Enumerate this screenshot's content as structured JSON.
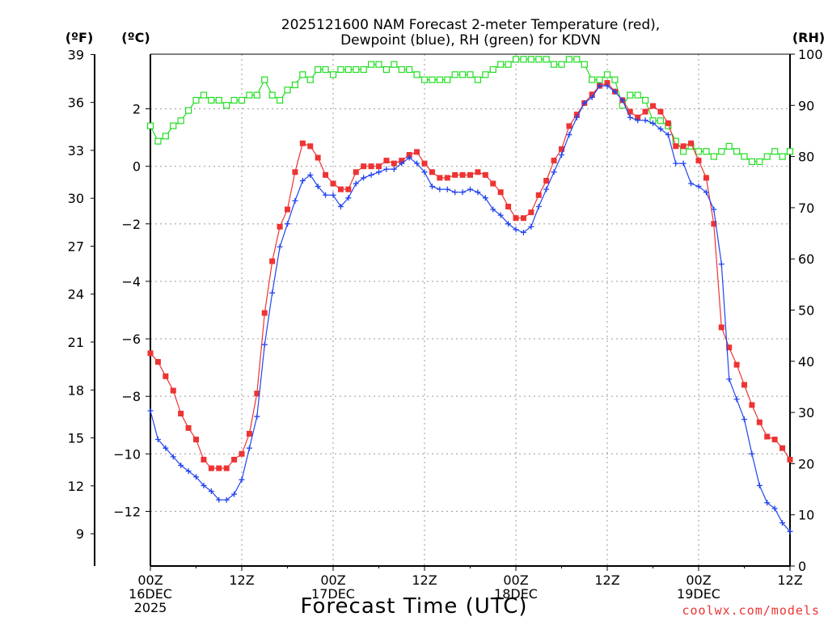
{
  "chart_data": {
    "type": "line",
    "title": "2025121600 NAM Forecast 2-meter Temperature (red),",
    "title_line2": "Dewpoint (blue), RH (green) for KDVN",
    "left_axis_unit_f": "(ºF)",
    "left_axis_unit_c": "(ºC)",
    "right_axis_unit": "(RH)",
    "xlabel": "Forecast Time (UTC)",
    "credit": "coolwx.com/models",
    "x_range_hours": [
      0,
      84
    ],
    "x_ticks": [
      {
        "hour": 0,
        "lines": [
          "00Z",
          "16DEC",
          "2025"
        ]
      },
      {
        "hour": 12,
        "lines": [
          "12Z"
        ]
      },
      {
        "hour": 24,
        "lines": [
          "00Z",
          "17DEC"
        ]
      },
      {
        "hour": 36,
        "lines": [
          "12Z"
        ]
      },
      {
        "hour": 48,
        "lines": [
          "00Z",
          "18DEC"
        ]
      },
      {
        "hour": 60,
        "lines": [
          "12Z"
        ]
      },
      {
        "hour": 72,
        "lines": [
          "00Z",
          "19DEC"
        ]
      },
      {
        "hour": 84,
        "lines": [
          "12Z"
        ]
      }
    ],
    "celsius_range": [
      -13.9,
      3.9
    ],
    "celsius_ticks": [
      "2",
      "0",
      "-2",
      "-4",
      "-6",
      "-8",
      "-10",
      "-12"
    ],
    "fahrenheit_ticks": [
      "39",
      "36",
      "33",
      "30",
      "27",
      "24",
      "21",
      "18",
      "15",
      "12",
      "9"
    ],
    "rh_range": [
      0,
      100
    ],
    "rh_ticks": [
      "0",
      "10",
      "20",
      "30",
      "40",
      "50",
      "60",
      "70",
      "80",
      "90",
      "100"
    ],
    "colors": {
      "temperature": "#ee3333",
      "dewpoint": "#2244ee",
      "rh": "#22dd22",
      "credit": "#ee3333"
    },
    "series": [
      {
        "name": "Temperature (°C)",
        "x": [
          0,
          1,
          2,
          3,
          4,
          5,
          6,
          7,
          8,
          9,
          10,
          11,
          12,
          13,
          14,
          15,
          16,
          17,
          18,
          19,
          20,
          21,
          22,
          23,
          24,
          25,
          26,
          27,
          28,
          29,
          30,
          31,
          32,
          33,
          34,
          35,
          36,
          37,
          38,
          39,
          40,
          41,
          42,
          43,
          44,
          45,
          46,
          47,
          48,
          49,
          50,
          51,
          52,
          53,
          54,
          55,
          56,
          57,
          58,
          59,
          60,
          61,
          62,
          63,
          64,
          65,
          66,
          67,
          68,
          69,
          70,
          71,
          72,
          73,
          74,
          75,
          76,
          77,
          78,
          79,
          80,
          81,
          82,
          83,
          84
        ],
        "values": [
          -6.5,
          -6.8,
          -7.3,
          -7.8,
          -8.6,
          -9.1,
          -9.5,
          -10.2,
          -10.5,
          -10.5,
          -10.5,
          -10.2,
          -10.0,
          -9.3,
          -7.9,
          -5.1,
          -3.3,
          -2.1,
          -1.5,
          -0.2,
          0.8,
          0.7,
          0.3,
          -0.3,
          -0.6,
          -0.8,
          -0.8,
          -0.2,
          0.0,
          0.0,
          0.0,
          0.2,
          0.1,
          0.2,
          0.4,
          0.5,
          0.1,
          -0.2,
          -0.4,
          -0.4,
          -0.3,
          -0.3,
          -0.3,
          -0.2,
          -0.3,
          -0.6,
          -0.9,
          -1.4,
          -1.8,
          -1.8,
          -1.6,
          -1.0,
          -0.5,
          0.2,
          0.6,
          1.4,
          1.8,
          2.2,
          2.5,
          2.8,
          2.9,
          2.6,
          2.3,
          1.9,
          1.7,
          1.9,
          2.1,
          1.9,
          1.5,
          0.7,
          0.7,
          0.8,
          0.2,
          -0.4,
          -2.0,
          -5.6,
          -6.3,
          -6.9,
          -7.6,
          -8.3,
          -8.9,
          -9.4,
          -9.5,
          -9.8,
          -10.2
        ]
      },
      {
        "name": "Dewpoint (°C)",
        "x": [
          0,
          1,
          2,
          3,
          4,
          5,
          6,
          7,
          8,
          9,
          10,
          11,
          12,
          13,
          14,
          15,
          16,
          17,
          18,
          19,
          20,
          21,
          22,
          23,
          24,
          25,
          26,
          27,
          28,
          29,
          30,
          31,
          32,
          33,
          34,
          35,
          36,
          37,
          38,
          39,
          40,
          41,
          42,
          43,
          44,
          45,
          46,
          47,
          48,
          49,
          50,
          51,
          52,
          53,
          54,
          55,
          56,
          57,
          58,
          59,
          60,
          61,
          62,
          63,
          64,
          65,
          66,
          67,
          68,
          69,
          70,
          71,
          72,
          73,
          74,
          75,
          76,
          77,
          78,
          79,
          80,
          81,
          82,
          83,
          84
        ],
        "values": [
          -8.5,
          -9.5,
          -9.8,
          -10.1,
          -10.4,
          -10.6,
          -10.8,
          -11.1,
          -11.3,
          -11.6,
          -11.6,
          -11.4,
          -10.9,
          -9.8,
          -8.7,
          -6.2,
          -4.4,
          -2.8,
          -2.0,
          -1.2,
          -0.5,
          -0.3,
          -0.7,
          -1.0,
          -1.0,
          -1.4,
          -1.1,
          -0.6,
          -0.4,
          -0.3,
          -0.2,
          -0.1,
          -0.1,
          0.1,
          0.3,
          0.1,
          -0.2,
          -0.7,
          -0.8,
          -0.8,
          -0.9,
          -0.9,
          -0.8,
          -0.9,
          -1.1,
          -1.5,
          -1.7,
          -2.0,
          -2.2,
          -2.3,
          -2.1,
          -1.4,
          -0.8,
          -0.2,
          0.4,
          1.1,
          1.7,
          2.2,
          2.4,
          2.8,
          2.8,
          2.6,
          2.3,
          1.7,
          1.6,
          1.6,
          1.5,
          1.3,
          1.1,
          0.1,
          0.1,
          -0.6,
          -0.7,
          -0.9,
          -1.5,
          -3.4,
          -7.4,
          -8.1,
          -8.8,
          -10.0,
          -11.1,
          -11.7,
          -11.9,
          -12.4,
          -12.7
        ]
      },
      {
        "name": "RH (%)",
        "x": [
          0,
          1,
          2,
          3,
          4,
          5,
          6,
          7,
          8,
          9,
          10,
          11,
          12,
          13,
          14,
          15,
          16,
          17,
          18,
          19,
          20,
          21,
          22,
          23,
          24,
          25,
          26,
          27,
          28,
          29,
          30,
          31,
          32,
          33,
          34,
          35,
          36,
          37,
          38,
          39,
          40,
          41,
          42,
          43,
          44,
          45,
          46,
          47,
          48,
          49,
          50,
          51,
          52,
          53,
          54,
          55,
          56,
          57,
          58,
          59,
          60,
          61,
          62,
          63,
          64,
          65,
          66,
          67,
          68,
          69,
          70,
          71,
          72,
          73,
          74,
          75,
          76,
          77,
          78,
          79,
          80,
          81,
          82,
          83,
          84
        ],
        "values": [
          86,
          83,
          84,
          86,
          87,
          89,
          91,
          92,
          91,
          91,
          90,
          91,
          91,
          92,
          92,
          95,
          92,
          91,
          93,
          94,
          96,
          95,
          97,
          97,
          96,
          97,
          97,
          97,
          97,
          98,
          98,
          97,
          98,
          97,
          97,
          96,
          95,
          95,
          95,
          95,
          96,
          96,
          96,
          95,
          96,
          97,
          98,
          98,
          99,
          99,
          99,
          99,
          99,
          98,
          98,
          99,
          99,
          98,
          95,
          95,
          96,
          95,
          90,
          92,
          92,
          91,
          87,
          87,
          86,
          83,
          81,
          82,
          81,
          81,
          80,
          81,
          82,
          81,
          80,
          79,
          79,
          80,
          81,
          80,
          81
        ]
      }
    ]
  }
}
